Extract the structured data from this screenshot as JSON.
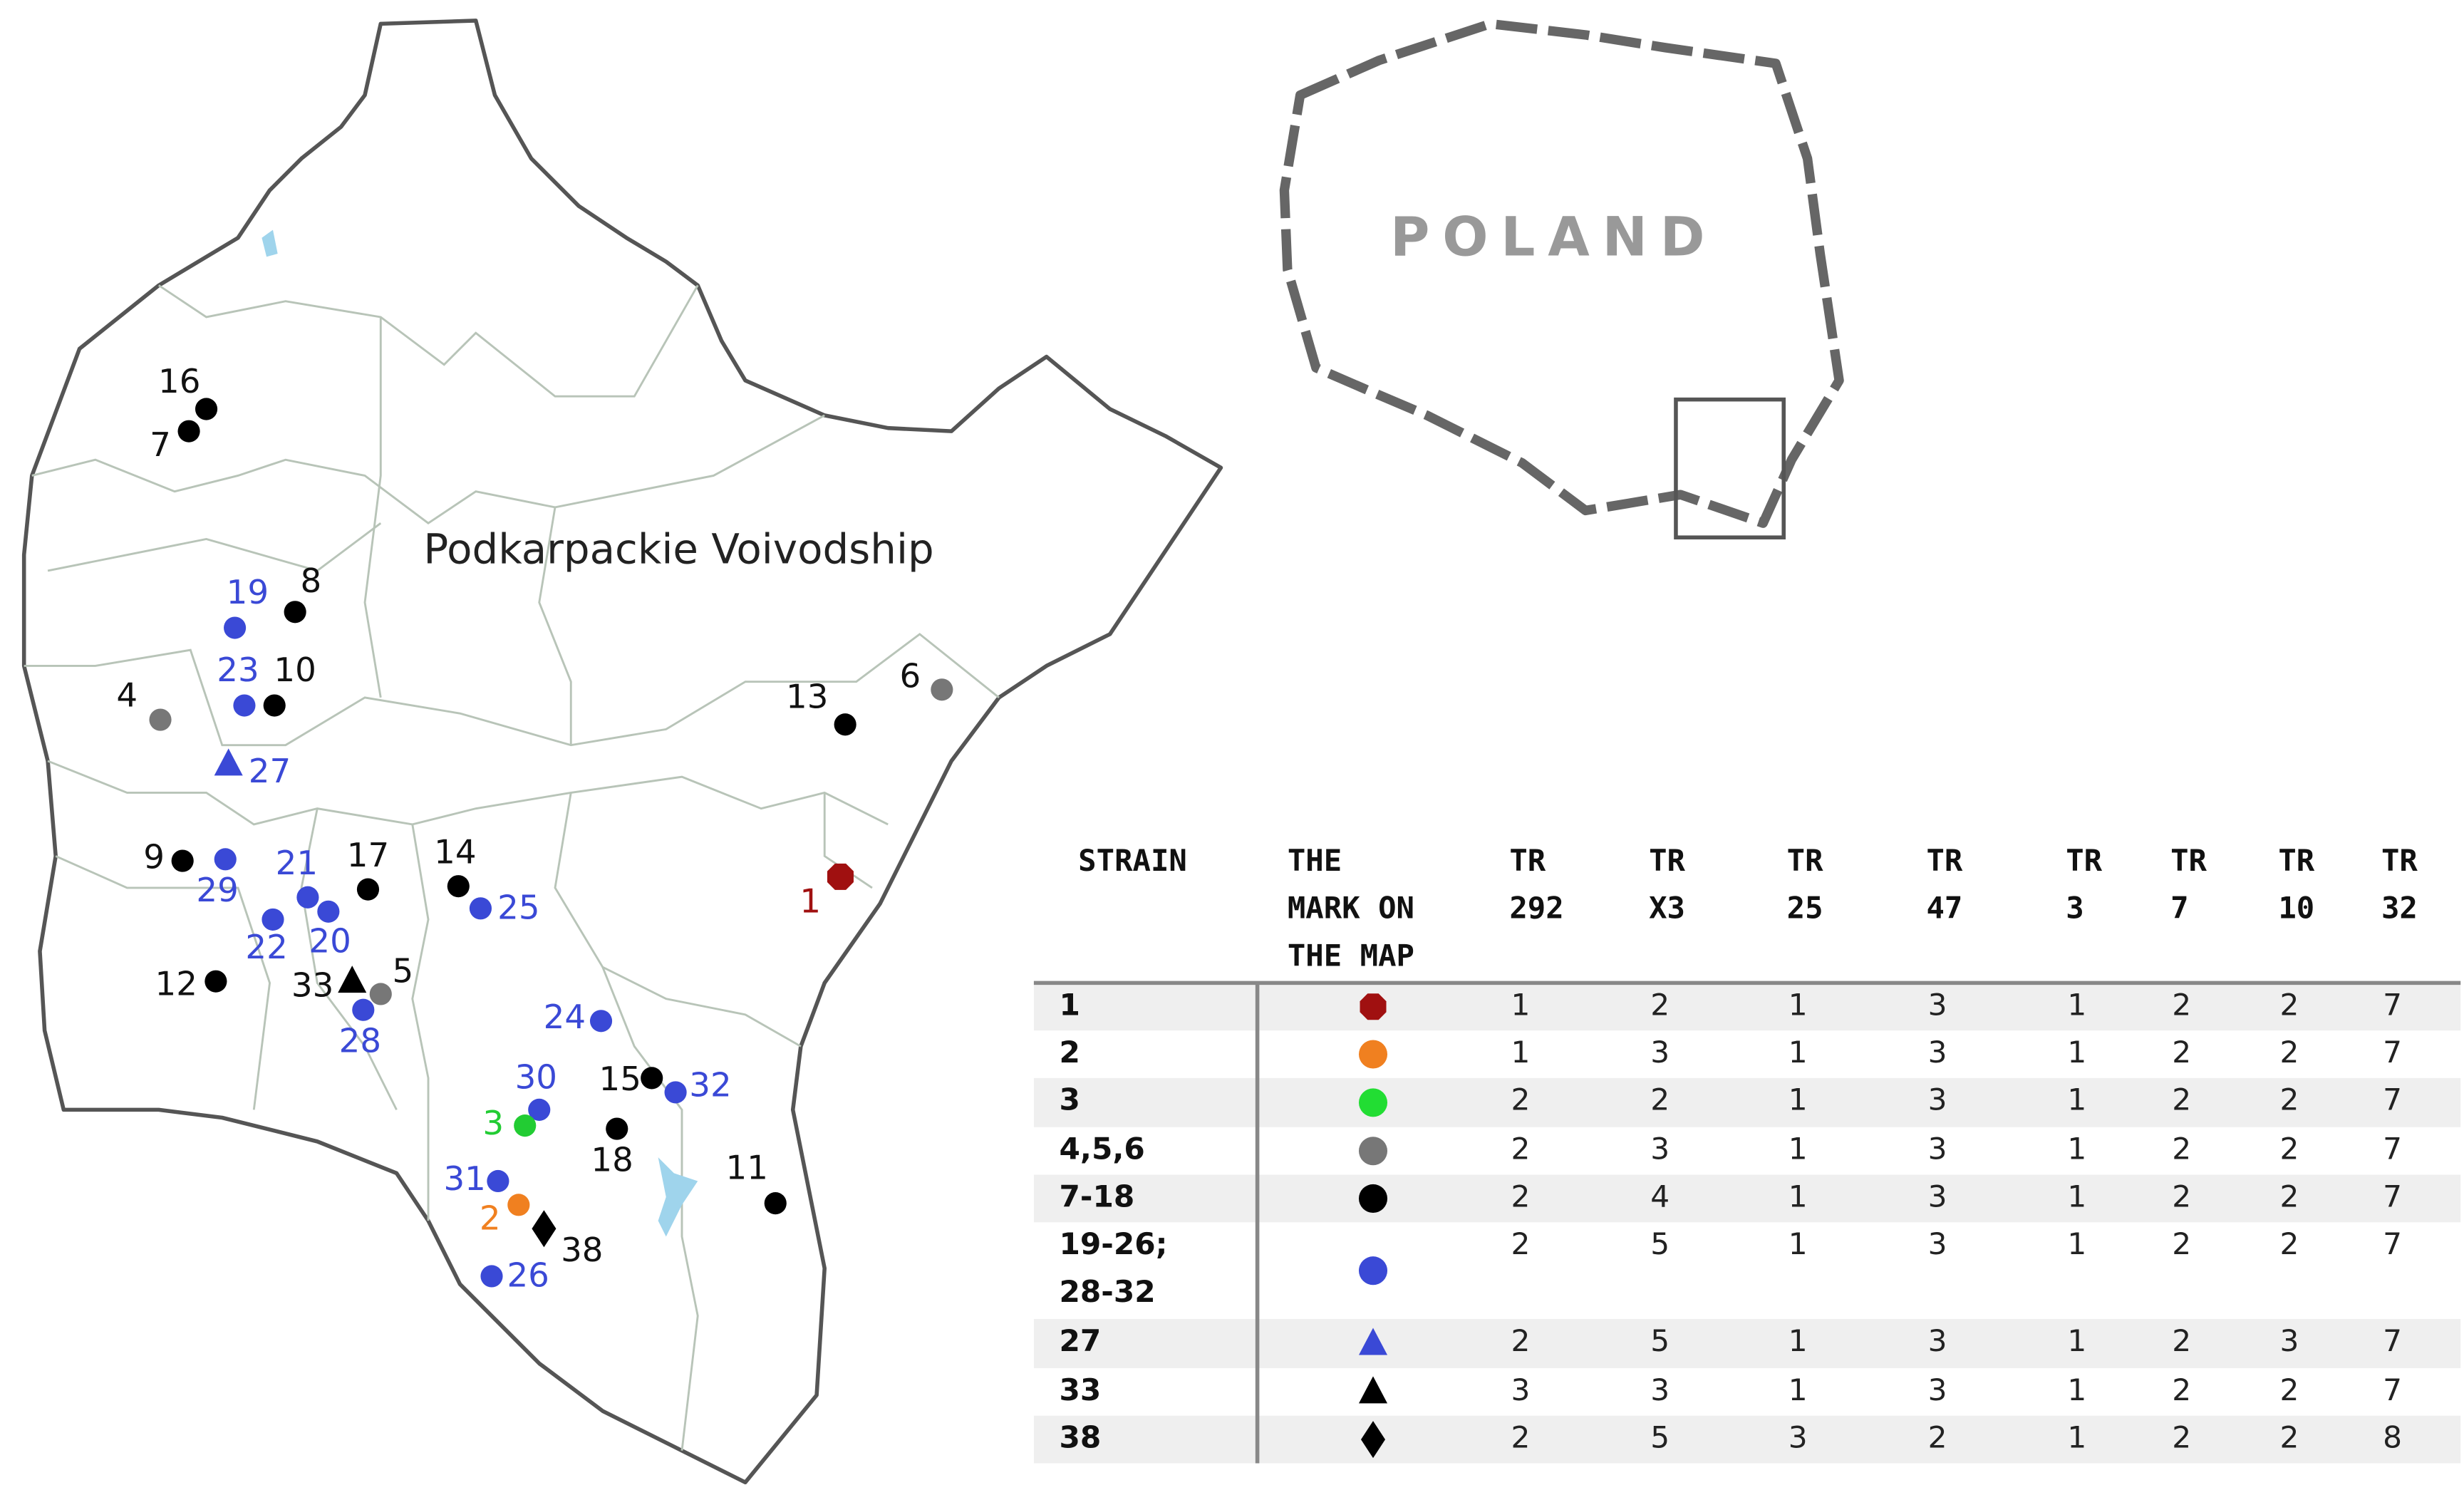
{
  "map": {
    "title": "Podkarpackie Voivodship",
    "points": [
      {
        "label": "16",
        "color": "#000000",
        "shape": "circle"
      },
      {
        "label": "7",
        "color": "#000000",
        "shape": "circle"
      },
      {
        "label": "19",
        "color": "#3a49d6",
        "shape": "circle"
      },
      {
        "label": "8",
        "color": "#000000",
        "shape": "circle"
      },
      {
        "label": "23",
        "color": "#3a49d6",
        "shape": "circle"
      },
      {
        "label": "10",
        "color": "#000000",
        "shape": "circle"
      },
      {
        "label": "4",
        "color": "#777777",
        "shape": "circle"
      },
      {
        "label": "27",
        "color": "#3a49d6",
        "shape": "triangle"
      },
      {
        "label": "13",
        "color": "#000000",
        "shape": "circle"
      },
      {
        "label": "6",
        "color": "#777777",
        "shape": "circle"
      },
      {
        "label": "1",
        "color": "#a01010",
        "shape": "octagon"
      },
      {
        "label": "9",
        "color": "#000000",
        "shape": "circle"
      },
      {
        "label": "29",
        "color": "#3a49d6",
        "shape": "circle"
      },
      {
        "label": "21",
        "color": "#3a49d6",
        "shape": "circle"
      },
      {
        "label": "17",
        "color": "#000000",
        "shape": "circle"
      },
      {
        "label": "22",
        "color": "#3a49d6",
        "shape": "circle"
      },
      {
        "label": "20",
        "color": "#3a49d6",
        "shape": "circle"
      },
      {
        "label": "14",
        "color": "#000000",
        "shape": "circle"
      },
      {
        "label": "25",
        "color": "#3a49d6",
        "shape": "circle"
      },
      {
        "label": "12",
        "color": "#000000",
        "shape": "circle"
      },
      {
        "label": "33",
        "color": "#000000",
        "shape": "triangle"
      },
      {
        "label": "5",
        "color": "#777777",
        "shape": "circle"
      },
      {
        "label": "28",
        "color": "#3a49d6",
        "shape": "circle"
      },
      {
        "label": "24",
        "color": "#3a49d6",
        "shape": "circle"
      },
      {
        "label": "30",
        "color": "#3a49d6",
        "shape": "circle"
      },
      {
        "label": "3",
        "color": "#22cc33",
        "shape": "circle"
      },
      {
        "label": "15",
        "color": "#000000",
        "shape": "circle"
      },
      {
        "label": "32",
        "color": "#3a49d6",
        "shape": "circle"
      },
      {
        "label": "18",
        "color": "#000000",
        "shape": "circle"
      },
      {
        "label": "31",
        "color": "#3a49d6",
        "shape": "circle"
      },
      {
        "label": "2",
        "color": "#f08020",
        "shape": "circle"
      },
      {
        "label": "38",
        "color": "#000000",
        "shape": "diamond"
      },
      {
        "label": "26",
        "color": "#3a49d6",
        "shape": "circle"
      },
      {
        "label": "11",
        "color": "#000000",
        "shape": "circle"
      }
    ]
  },
  "inset": {
    "title": "POLAND"
  },
  "table": {
    "headers": [
      [
        "STRAIN"
      ],
      [
        "THE",
        "MARK ON",
        "THE MAP"
      ],
      [
        "TR",
        "292"
      ],
      [
        "TR",
        "X3"
      ],
      [
        "TR",
        "25"
      ],
      [
        "TR",
        "47"
      ],
      [
        "TR",
        "3"
      ],
      [
        "TR",
        "7"
      ],
      [
        "TR",
        "10"
      ],
      [
        "TR",
        "32"
      ]
    ],
    "rows": [
      {
        "strain": [
          "1"
        ],
        "marker": {
          "shape": "octagon",
          "color": "#a01010"
        },
        "values": [
          1,
          2,
          1,
          3,
          1,
          2,
          2,
          7
        ]
      },
      {
        "strain": [
          "2"
        ],
        "marker": {
          "shape": "circle",
          "color": "#f08020"
        },
        "values": [
          1,
          3,
          1,
          3,
          1,
          2,
          2,
          7
        ]
      },
      {
        "strain": [
          "3"
        ],
        "marker": {
          "shape": "circle",
          "color": "#22dd33"
        },
        "values": [
          2,
          2,
          1,
          3,
          1,
          2,
          2,
          7
        ]
      },
      {
        "strain": [
          "4,5,6"
        ],
        "marker": {
          "shape": "circle",
          "color": "#777777"
        },
        "values": [
          2,
          3,
          1,
          3,
          1,
          2,
          2,
          7
        ]
      },
      {
        "strain": [
          "7-18"
        ],
        "marker": {
          "shape": "circle",
          "color": "#000000"
        },
        "values": [
          2,
          4,
          1,
          3,
          1,
          2,
          2,
          7
        ]
      },
      {
        "strain": [
          "19-26;",
          "28-32"
        ],
        "marker": {
          "shape": "circle",
          "color": "#3a49d6"
        },
        "values": [
          2,
          5,
          1,
          3,
          1,
          2,
          2,
          7
        ]
      },
      {
        "strain": [
          "27"
        ],
        "marker": {
          "shape": "triangle",
          "color": "#3a49d6"
        },
        "values": [
          2,
          5,
          1,
          3,
          1,
          2,
          3,
          7
        ]
      },
      {
        "strain": [
          "33"
        ],
        "marker": {
          "shape": "triangle",
          "color": "#000000"
        },
        "values": [
          3,
          3,
          1,
          3,
          1,
          2,
          2,
          7
        ]
      },
      {
        "strain": [
          "38"
        ],
        "marker": {
          "shape": "diamond",
          "color": "#000000"
        },
        "values": [
          2,
          5,
          3,
          2,
          1,
          2,
          2,
          8
        ]
      }
    ]
  }
}
